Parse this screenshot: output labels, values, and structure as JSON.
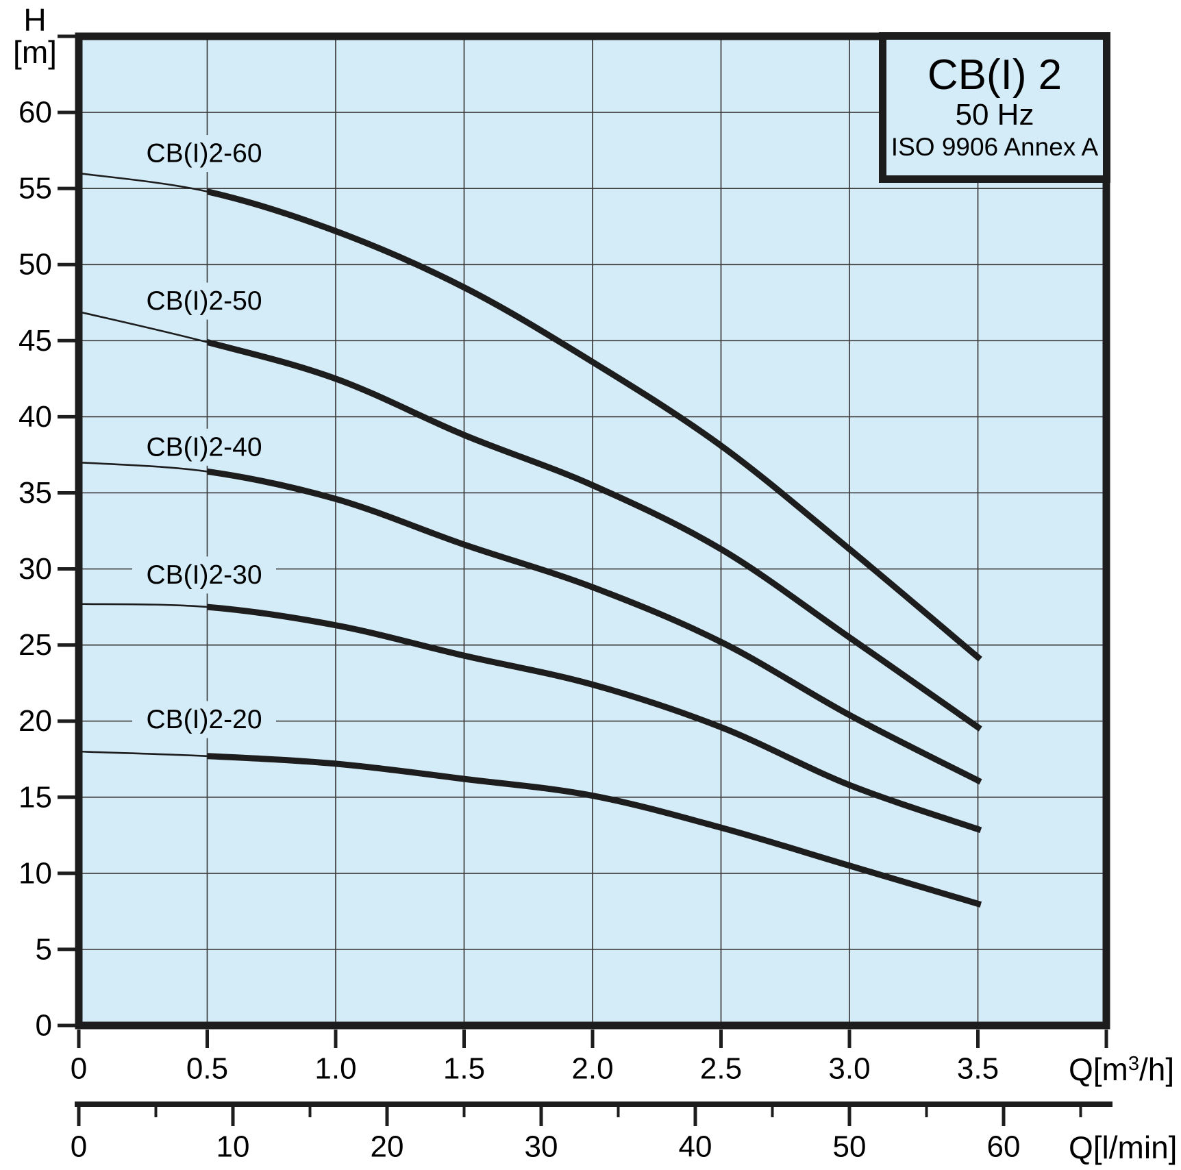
{
  "title_box": {
    "model": "CB(I) 2",
    "frequency": "50 Hz",
    "standard": "ISO 9906 Annex A"
  },
  "y_axis": {
    "title_line1": "H",
    "title_line2": "[m]",
    "tick_labels": [
      "0",
      "5",
      "10",
      "15",
      "20",
      "25",
      "30",
      "35",
      "40",
      "45",
      "50",
      "55",
      "60"
    ],
    "tick_step": 5,
    "min": 0,
    "max": 65
  },
  "x_axis_primary": {
    "title": "Q[m³/h]",
    "tick_labels": [
      "0",
      "0.5",
      "1.0",
      "1.5",
      "2.0",
      "2.5",
      "3.0",
      "3.5"
    ],
    "tick_step": 0.5,
    "min": 0,
    "max": 4.0
  },
  "x_axis_secondary": {
    "title": "Q[l/min]",
    "tick_labels": [
      "0",
      "10",
      "20",
      "30",
      "40",
      "50",
      "60"
    ],
    "major_tick_step": 10,
    "minor_tick_step": 5,
    "min": 0,
    "max": 67,
    "lmin_per_m3h": 16.6667
  },
  "chart_data": {
    "type": "line",
    "title": "CB(I) 2 pump performance curves, 50 Hz, ISO 9906 Annex A",
    "xlabel": "Q[m³/h]",
    "ylabel": "H [m]",
    "xlim": [
      0,
      4.0
    ],
    "ylim": [
      0,
      65
    ],
    "grid": true,
    "x": [
      0,
      0.5,
      1.0,
      1.5,
      2.0,
      2.5,
      3.0,
      3.5
    ],
    "thin_segment_until_q": 0.5,
    "label_q": 0.488,
    "series": [
      {
        "name": "CB(I)2-60",
        "values": [
          56.0,
          54.8,
          52.2,
          48.5,
          43.6,
          38.1,
          31.3,
          24.2
        ],
        "label_h": 57.3
      },
      {
        "name": "CB(I)2-50",
        "values": [
          46.9,
          44.9,
          42.5,
          38.8,
          35.5,
          31.3,
          25.5,
          19.6
        ],
        "label_h": 47.6
      },
      {
        "name": "CB(I)2-40",
        "values": [
          37.0,
          36.4,
          34.6,
          31.6,
          28.8,
          25.2,
          20.4,
          16.1
        ],
        "label_h": 38.0
      },
      {
        "name": "CB(I)2-30",
        "values": [
          27.7,
          27.5,
          26.3,
          24.3,
          22.4,
          19.6,
          15.8,
          12.9
        ],
        "label_h": 29.6
      },
      {
        "name": "CB(I)2-20",
        "values": [
          18.0,
          17.7,
          17.2,
          16.2,
          15.1,
          13.0,
          10.5,
          8.0
        ],
        "label_h": 20.1
      }
    ]
  },
  "colors": {
    "plot_background": "#d4ecf8",
    "line": "#1d1d1d",
    "grid": "#3d3d3d",
    "text": "#000000",
    "page_background": "#ffffff"
  }
}
